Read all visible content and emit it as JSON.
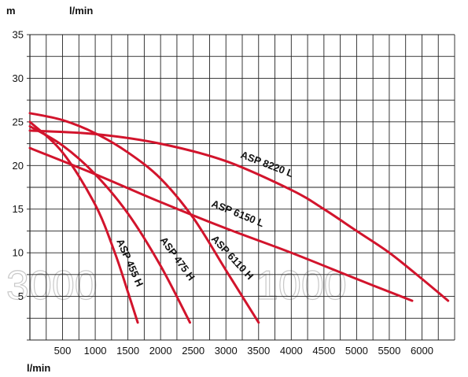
{
  "chart_data": {
    "type": "line",
    "x_unit_label": "l/min",
    "y_unit_label": "m",
    "y_unit_extra": "l/min",
    "xlim": [
      0,
      6500
    ],
    "ylim": [
      0,
      35
    ],
    "grid": true,
    "x_ticks": [
      500,
      1000,
      1500,
      2000,
      2500,
      3000,
      3500,
      4000,
      4500,
      5000,
      5500,
      6000
    ],
    "y_ticks": [
      5,
      10,
      15,
      20,
      25,
      30,
      35
    ],
    "line_color": "#d2142c",
    "watermark": [
      "3000",
      "1000"
    ],
    "series": [
      {
        "name": "ASP 455 H",
        "x": [
          0,
          500,
          1000,
          1300,
          1500,
          1650
        ],
        "y": [
          25,
          21.5,
          15.5,
          10,
          5.5,
          2
        ]
      },
      {
        "name": "ASP 475 H",
        "x": [
          0,
          500,
          1000,
          1500,
          2000,
          2450
        ],
        "y": [
          24.5,
          22.3,
          19,
          14.5,
          8.5,
          2
        ]
      },
      {
        "name": "ASP 6110 H",
        "x": [
          0,
          500,
          1000,
          1500,
          2000,
          2500,
          3000,
          3500
        ],
        "y": [
          26,
          25.2,
          23.7,
          21.5,
          18.5,
          14,
          8,
          2
        ]
      },
      {
        "name": "ASP 6150 L",
        "x": [
          0,
          1000,
          2000,
          3000,
          4000,
          5000,
          5850
        ],
        "y": [
          22,
          19,
          15.8,
          12.8,
          10,
          7,
          4.5
        ]
      },
      {
        "name": "ASP 8220 L",
        "x": [
          0,
          1000,
          2000,
          3000,
          4000,
          4500,
          5000,
          5500,
          6000,
          6400
        ],
        "y": [
          24,
          23.6,
          22.5,
          20.5,
          17.2,
          15,
          12.5,
          10,
          7,
          4.5
        ]
      }
    ]
  }
}
